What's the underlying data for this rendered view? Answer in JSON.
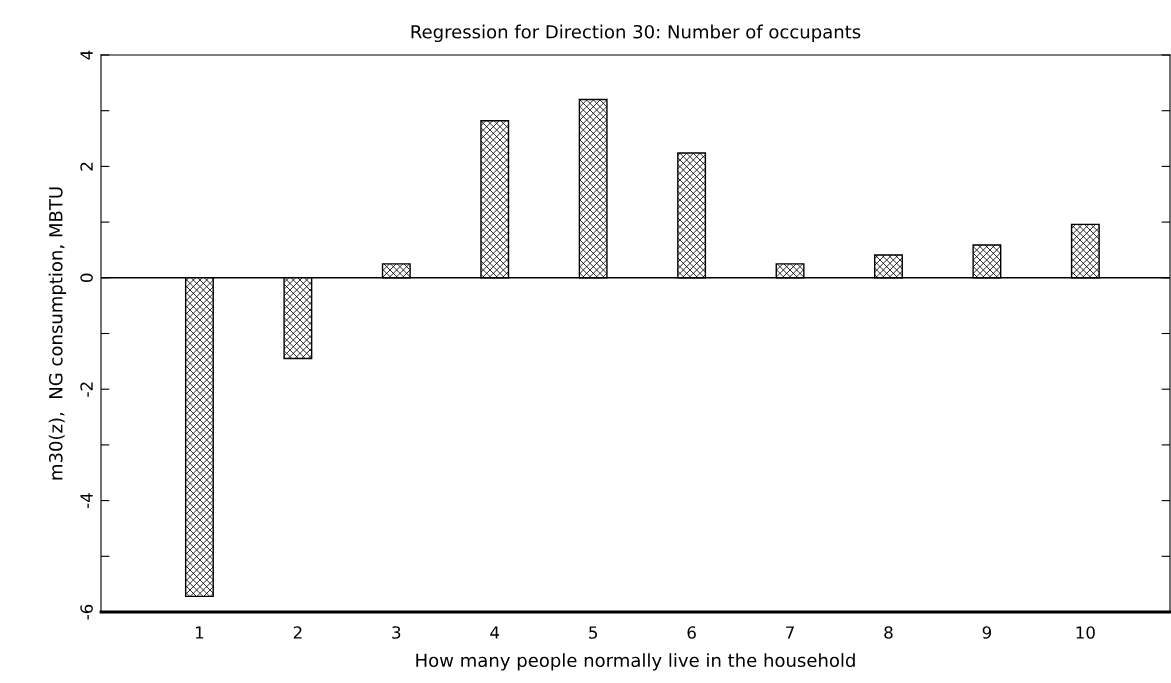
{
  "chart_data": {
    "type": "bar",
    "title": "Regression for Direction 30: Number of occupants",
    "xlabel": "How many people normally live in the household",
    "ylabel": "m30(z),  NG consumption, MBTU",
    "categories": [
      "1",
      "2",
      "3",
      "4",
      "5",
      "6",
      "7",
      "8",
      "9",
      "10"
    ],
    "values": [
      -5.72,
      -1.45,
      0.25,
      2.82,
      3.2,
      2.24,
      0.25,
      0.41,
      0.59,
      0.96
    ],
    "color": "#000000",
    "ylim": [
      -6,
      4
    ],
    "yticks": [
      -6,
      {
        "value": -5,
        "label": null
      },
      -4,
      {
        "value": -3,
        "label": null
      },
      -2,
      {
        "value": -1,
        "label": null
      },
      0,
      {
        "value": 1,
        "label": null
      },
      2,
      {
        "value": 3,
        "label": null
      },
      4
    ],
    "ref_lines": [
      {
        "axis": "y",
        "value": 0
      }
    ],
    "grid": false
  }
}
